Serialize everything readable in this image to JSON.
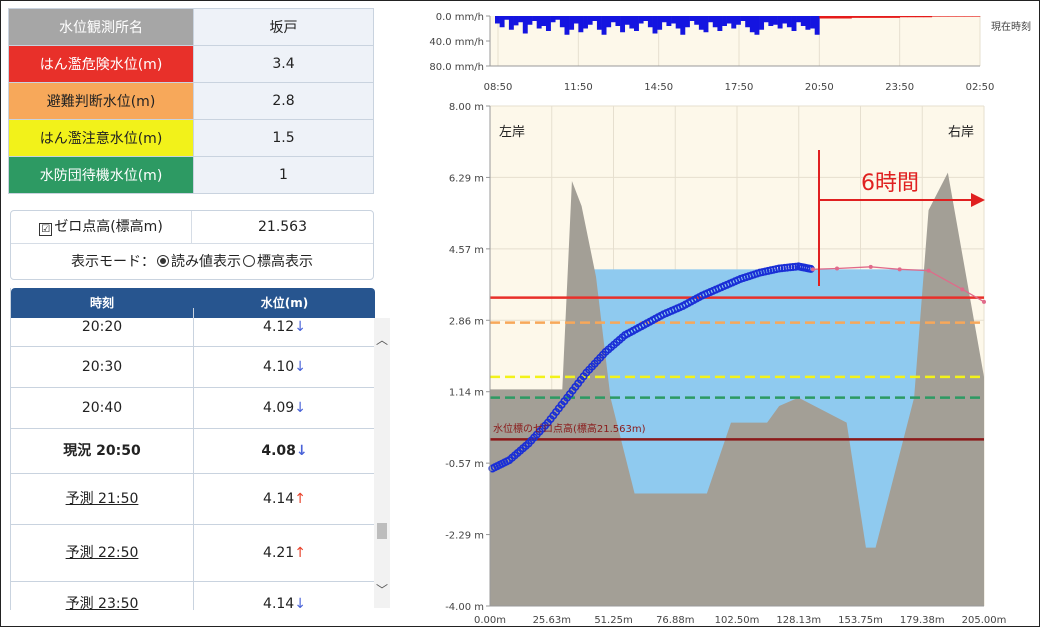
{
  "station": {
    "header_label": "水位観測所名",
    "header_value": "坂戸"
  },
  "levels": [
    {
      "label": "はん濫危険水位(m)",
      "value": "3.4",
      "color": "#e8302a"
    },
    {
      "label": "避難判断水位(m)",
      "value": "2.8",
      "color": "#f7a85a"
    },
    {
      "label": "はん濫注意水位(m)",
      "value": "1.5",
      "color": "#f2f21a"
    },
    {
      "label": "水防団待機水位(m)",
      "value": "1",
      "color": "#2d9a63"
    }
  ],
  "zero_point": {
    "checkbox_mark": "☑",
    "label": "ゼロ点高(標高m)",
    "value": "21.563"
  },
  "display_mode": {
    "label": "表示モード：",
    "option_reading": "読み値表示",
    "option_elevation": "標高表示",
    "selected": "読み値表示"
  },
  "table": {
    "col_time": "時刻",
    "col_level": "水位(m)",
    "rows": [
      {
        "time": "20:20",
        "level": "4.12",
        "trend": "↓"
      },
      {
        "time": "20:30",
        "level": "4.10",
        "trend": "↓"
      },
      {
        "time": "20:40",
        "level": "4.09",
        "trend": "↓"
      },
      {
        "time": "現況 20:50",
        "level": "4.08",
        "trend": "↓"
      },
      {
        "time": "予測 21:50",
        "level": "4.14",
        "trend": "↑"
      },
      {
        "time": "予測 22:50",
        "level": "4.21",
        "trend": "↑"
      },
      {
        "time": "予測 23:50",
        "level": "4.14",
        "trend": "↓"
      }
    ]
  },
  "rain_chart": {
    "y_ticks": [
      "0.0 mm/h",
      "40.0 mm/h",
      "80.0 mm/h"
    ],
    "x_ticks": [
      "08:50",
      "11:50",
      "14:50",
      "17:50",
      "20:50",
      "23:50",
      "02:50"
    ],
    "side_label": "現在時刻"
  },
  "section_chart": {
    "y_ticks": [
      "8.00 m",
      "6.29 m",
      "4.57 m",
      "2.86 m",
      "1.14 m",
      "-0.57 m",
      "-2.29 m",
      "-4.00 m"
    ],
    "x_ticks": [
      "0.00m",
      "25.63m",
      "51.25m",
      "76.88m",
      "102.50m",
      "128.13m",
      "153.75m",
      "179.38m",
      "205.00m"
    ],
    "left_bank": "左岸",
    "right_bank": "右岸",
    "forecast_label": "6時間",
    "zero_label": "水位標のゼロ点高(標高21.563m)",
    "colors": {
      "observed": "#1a2fd6",
      "forecast": "#e06a8a",
      "water": "#8fcaef",
      "ground": "#a39f96"
    }
  },
  "chart_data": [
    {
      "type": "bar",
      "title": "",
      "x_range": [
        "08:50",
        "02:50"
      ],
      "ylim": [
        0,
        80
      ],
      "ylabel": "mm/h",
      "series": [
        {
          "name": "",
          "values": [
            12,
            18,
            6,
            22,
            15,
            10,
            28,
            14,
            8,
            20,
            16,
            24,
            10,
            6,
            18,
            30,
            22,
            12,
            26,
            20,
            14,
            8,
            22,
            30,
            18,
            10,
            16,
            26,
            14,
            20,
            24,
            12,
            8,
            18,
            28,
            22,
            10,
            16,
            12,
            20,
            30,
            18,
            8,
            14,
            22,
            26,
            10,
            18,
            24,
            16,
            12,
            20,
            14,
            8,
            18,
            26,
            30,
            22,
            10,
            16,
            14,
            20,
            12,
            18,
            24,
            10,
            16,
            22,
            20,
            30
          ]
        },
        {
          "name": "",
          "values": [
            4,
            4,
            4,
            4,
            3,
            3,
            3,
            3,
            3,
            3,
            2,
            2,
            2,
            2,
            1,
            1,
            1,
            1,
            1,
            1
          ]
        }
      ]
    },
    {
      "type": "line",
      "title": "",
      "xlabel": "",
      "ylabel": "",
      "xlim": [
        0,
        205
      ],
      "ylim": [
        -4.0,
        8.0
      ],
      "series": [
        {
          "name": "",
          "x": [
            1,
            8,
            16,
            24,
            32,
            40,
            48,
            56,
            64,
            72,
            80,
            88,
            96,
            104,
            112,
            120,
            128,
            134
          ],
          "y": [
            -0.7,
            -0.5,
            -0.1,
            0.4,
            1.0,
            1.6,
            2.1,
            2.5,
            2.75,
            3.0,
            3.2,
            3.45,
            3.65,
            3.85,
            4.0,
            4.1,
            4.15,
            4.08
          ]
        },
        {
          "name": "",
          "x": [
            134,
            144,
            158,
            170,
            182,
            196,
            205
          ],
          "y": [
            4.08,
            4.1,
            4.14,
            4.08,
            4.05,
            3.6,
            3.3
          ]
        }
      ],
      "ground_profile": {
        "x": [
          0,
          14,
          30,
          34,
          38,
          44,
          50,
          60,
          90,
          100,
          115,
          120,
          128,
          148,
          156,
          160,
          176,
          182,
          190,
          205
        ],
        "y": [
          1.2,
          1.2,
          1.2,
          6.2,
          5.6,
          3.9,
          1.0,
          -1.3,
          -1.3,
          0.4,
          0.4,
          0.8,
          1.0,
          0.4,
          -2.6,
          -2.6,
          1.0,
          5.5,
          6.4,
          1.5
        ]
      },
      "water_level": 4.08,
      "reference_levels": [
        3.4,
        2.8,
        1.5,
        1.0,
        0.0
      ]
    }
  ]
}
